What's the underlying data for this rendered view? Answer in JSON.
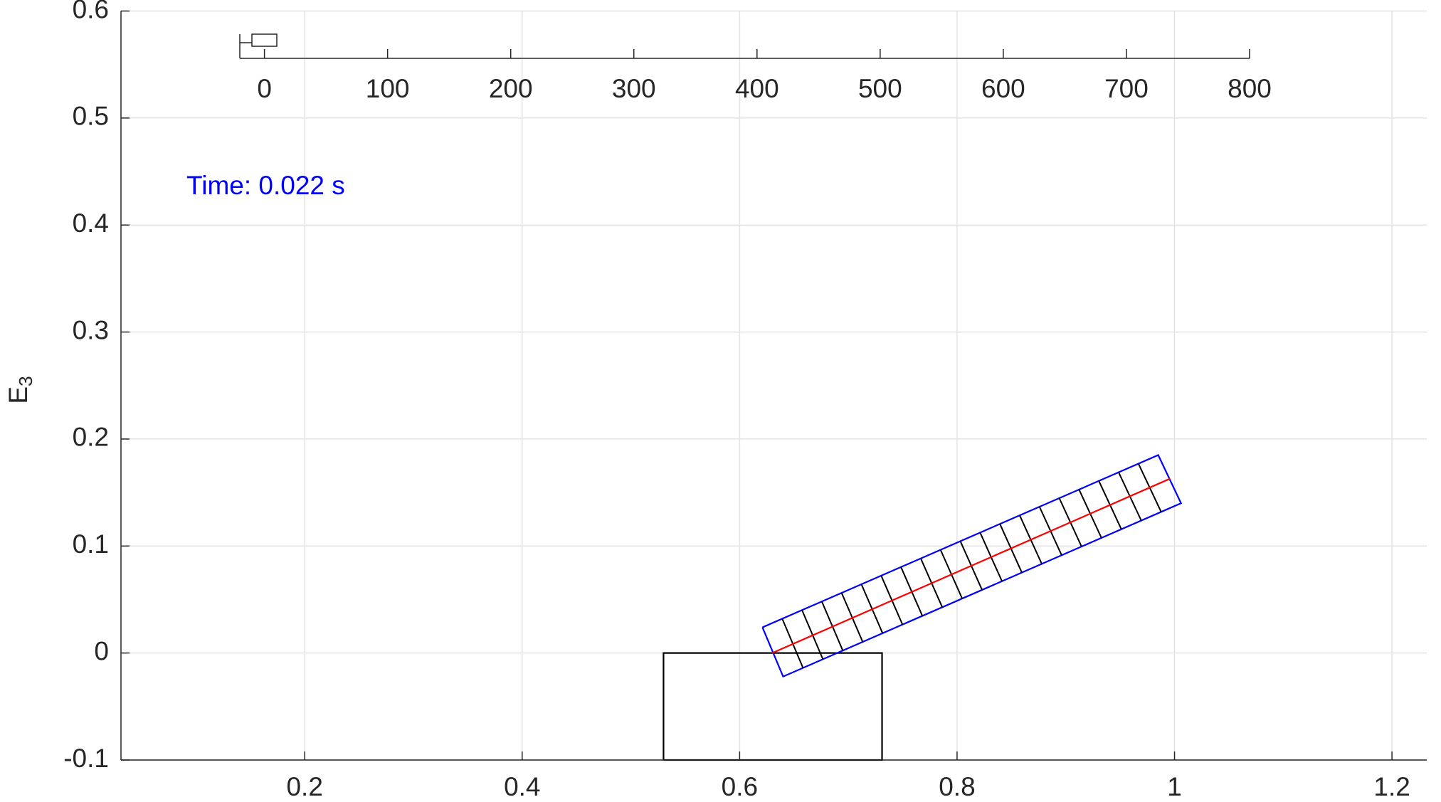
{
  "chart_data": {
    "type": "line",
    "ylabel": "E",
    "ylabel_sub": "3",
    "annotation": "Time: 0.022 s",
    "annotation_color": "#0000ff",
    "xlim": [
      0.031,
      1.232
    ],
    "ylim": [
      -0.1,
      0.6
    ],
    "xticks": [
      0.2,
      0.4,
      0.6,
      0.8,
      1,
      1.2
    ],
    "yticks": [
      -0.1,
      0,
      0.1,
      0.2,
      0.3,
      0.4,
      0.5,
      0.6
    ],
    "grid": true,
    "series": [
      {
        "color": "#000000",
        "x": [
          0.53,
          0.53,
          0.731,
          0.731,
          0.53
        ],
        "y": [
          -0.1,
          0,
          0,
          -0.1,
          -0.1
        ]
      },
      {
        "color": "#0000ff",
        "x": [
          0.621,
          0.985,
          1.006,
          0.64,
          0.621
        ],
        "y": [
          0.024,
          0.185,
          0.14,
          -0.022,
          0.024
        ]
      },
      {
        "color": "#ff0000",
        "x": [
          0.63,
          0.996
        ],
        "y": [
          0,
          0.163
        ]
      }
    ],
    "inset": {
      "xlim": [
        -20,
        800
      ],
      "xticks": [
        0,
        100,
        200,
        300,
        400,
        500,
        600,
        700,
        800
      ]
    }
  }
}
